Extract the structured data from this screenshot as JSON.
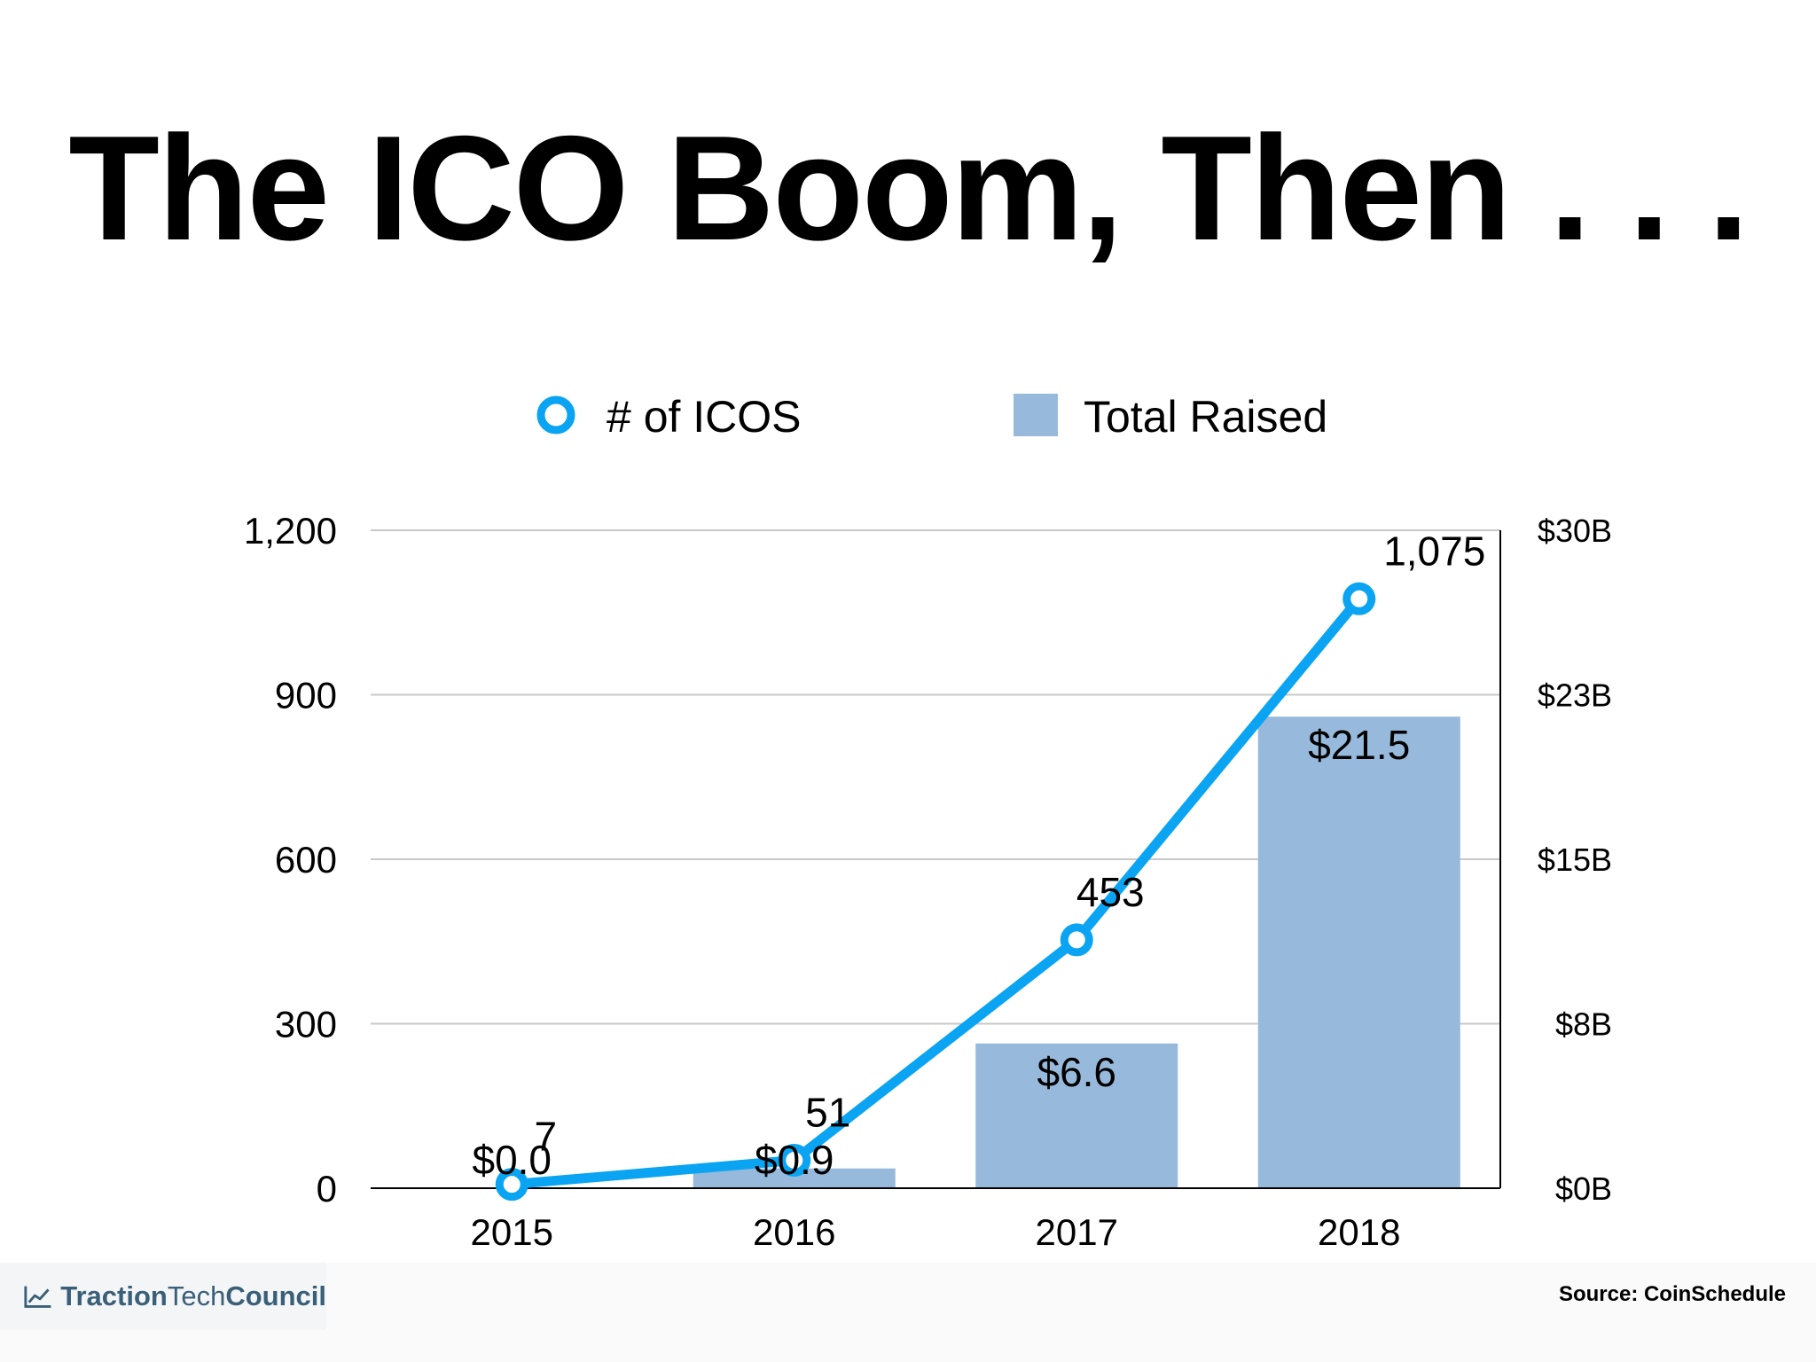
{
  "page": {
    "title": "The ICO Boom, Then . . .",
    "source": "Source: CoinSchedule",
    "logo": {
      "part1": "Traction",
      "part2": "Tech",
      "part3": "Council",
      "icon": "trend-chart-icon"
    }
  },
  "colors": {
    "line": "#0aa4f2",
    "bar": "#97b9db",
    "grid": "#c8c8c8",
    "axis": "#000000",
    "logo": "#3a5f78"
  },
  "chart_data": {
    "type": "bar",
    "categories": [
      "2015",
      "2016",
      "2017",
      "2018"
    ],
    "legend_position": "top-center",
    "series": [
      {
        "name": "# of ICOS",
        "type": "line",
        "axis": "left",
        "values": [
          7,
          51,
          453,
          1075
        ],
        "labels": [
          "7",
          "51",
          "453",
          "1,075"
        ]
      },
      {
        "name": "Total Raised",
        "type": "bar",
        "axis": "right",
        "values": [
          0.0,
          0.9,
          6.6,
          21.5
        ],
        "labels": [
          "$0.0",
          "$0.9",
          "$6.6",
          "$21.5"
        ]
      }
    ],
    "left_axis": {
      "ylim": [
        0,
        1200
      ],
      "ticks": [
        0,
        300,
        600,
        900,
        1200
      ],
      "tick_labels": [
        "0",
        "300",
        "600",
        "900",
        "1,200"
      ]
    },
    "right_axis": {
      "ylim": [
        0,
        30
      ],
      "ticks": [
        0,
        7.5,
        15,
        22.5,
        30
      ],
      "tick_labels": [
        "$0B",
        "$8B",
        "$15B",
        "$23B",
        "$30B"
      ]
    },
    "grid": true
  }
}
